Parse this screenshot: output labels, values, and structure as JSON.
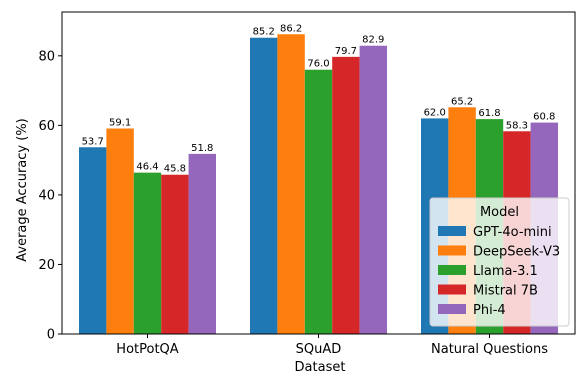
{
  "chart_data": {
    "type": "bar",
    "xlabel": "Dataset",
    "ylabel": "Average Accuracy (%)",
    "ylim": [
      0,
      92.6
    ],
    "yticks": [
      0,
      20,
      40,
      60,
      80
    ],
    "grid": false,
    "legend": {
      "title": "Model",
      "placement": "lower-right"
    },
    "categories": [
      "HotPotQA",
      "SQuAD",
      "Natural Questions"
    ],
    "series": [
      {
        "name": "GPT-4o-mini",
        "color": "#1f77b4",
        "values": [
          53.7,
          85.2,
          62.0
        ],
        "labels": [
          "53.7",
          "85.2",
          "62.0"
        ]
      },
      {
        "name": "DeepSeek-V3",
        "color": "#ff7f0e",
        "values": [
          59.1,
          86.2,
          65.2
        ],
        "labels": [
          "59.1",
          "86.2",
          "65.2"
        ]
      },
      {
        "name": "Llama-3.1",
        "color": "#2ca02c",
        "values": [
          46.4,
          76.0,
          61.8
        ],
        "labels": [
          "46.4",
          "76.0",
          "61.8"
        ]
      },
      {
        "name": "Mistral 7B",
        "color": "#d62728",
        "values": [
          45.8,
          79.7,
          58.3
        ],
        "labels": [
          "45.8",
          "79.7",
          "58.3"
        ]
      },
      {
        "name": "Phi-4",
        "color": "#9467bd",
        "values": [
          51.8,
          82.9,
          60.8
        ],
        "labels": [
          "51.8",
          "82.9",
          "60.8"
        ]
      }
    ]
  }
}
